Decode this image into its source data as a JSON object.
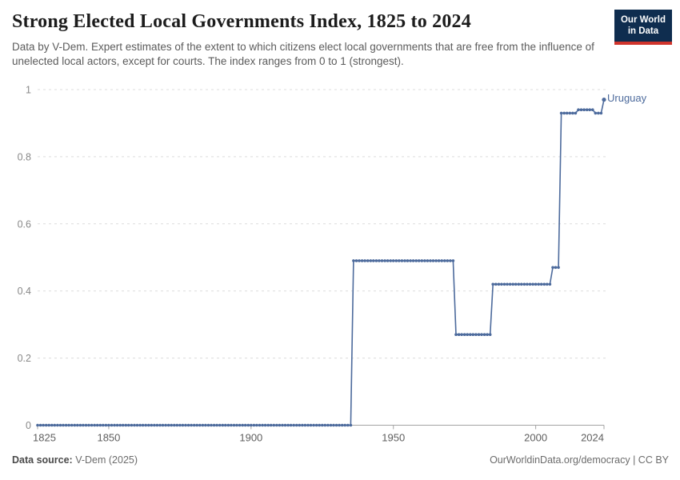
{
  "header": {
    "title": "Strong Elected Local Governments Index, 1825 to 2024",
    "subtitle": "Data by V-Dem. Expert estimates of the extent to which citizens elect local governments that are free from the influence of unelected local actors, except for courts. The index ranges from 0 to 1 (strongest).",
    "logo": {
      "line1": "Our World",
      "line2": "in Data",
      "bg_color": "#0F2D4F",
      "accent_color": "#D0342C"
    }
  },
  "chart_data": {
    "type": "line",
    "title": "Strong Elected Local Governments Index, 1825 to 2024",
    "xlabel": "",
    "ylabel": "",
    "x_range": [
      1825,
      2024
    ],
    "y_range": [
      0,
      1
    ],
    "x_ticks": [
      1825,
      1850,
      1900,
      1950,
      2000,
      2024
    ],
    "y_ticks": [
      0,
      0.2,
      0.4,
      0.6,
      0.8,
      1
    ],
    "grid": "horizontal-dashed",
    "legend_position": "line-end-label",
    "colors": {
      "gridline": "#dcdcdc",
      "axis": "#a3a3a3",
      "x_tick_label": "#5e5e5e",
      "y_tick_label": "#888888"
    },
    "series": [
      {
        "name": "Uruguay",
        "color": "#4C6A9C",
        "marker": "dot-every-year",
        "step_segments": [
          {
            "from": 1825,
            "to": 1935,
            "value": 0
          },
          {
            "from": 1936,
            "to": 1971,
            "value": 0.49
          },
          {
            "from": 1972,
            "to": 1984,
            "value": 0.27
          },
          {
            "from": 1985,
            "to": 2005,
            "value": 0.42
          },
          {
            "from": 2006,
            "to": 2008,
            "value": 0.47
          },
          {
            "from": 2009,
            "to": 2014,
            "value": 0.93
          },
          {
            "from": 2015,
            "to": 2020,
            "value": 0.94
          },
          {
            "from": 2021,
            "to": 2023,
            "value": 0.93
          },
          {
            "from": 2024,
            "to": 2024,
            "value": 0.97
          }
        ]
      }
    ]
  },
  "footer": {
    "source_label": "Data source:",
    "source_value": "V-Dem (2025)",
    "credit": "OurWorldinData.org/democracy | CC BY"
  }
}
